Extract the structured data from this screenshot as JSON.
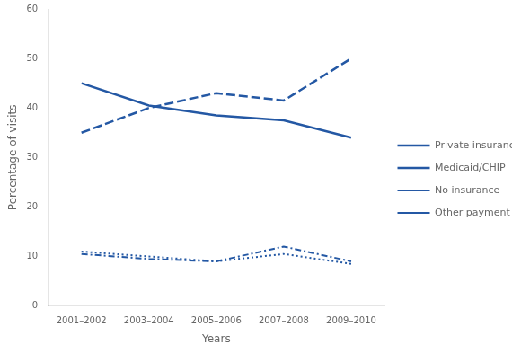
{
  "chart_data": {
    "type": "line",
    "xlabel": "Years",
    "ylabel": "Percentage of visits",
    "categories": [
      "2001–2002",
      "2003–2004",
      "2005–2006",
      "2007–2008",
      "2009–2010"
    ],
    "series": [
      {
        "name": "Private insurance",
        "color": "#2458a4",
        "line_style": "solid",
        "values": [
          45,
          40.5,
          38.5,
          37.5,
          34
        ]
      },
      {
        "name": "Medicaid/CHIP",
        "color": "#2458a4",
        "line_style": "dashed",
        "values": [
          35,
          40,
          43,
          41.5,
          50
        ]
      },
      {
        "name": "No insurance",
        "color": "#2458a4",
        "line_style": "dotted",
        "values": [
          11,
          10,
          9,
          10.5,
          8.5
        ]
      },
      {
        "name": "Other payment",
        "color": "#2458a4",
        "line_style": "dashdot",
        "values": [
          10.5,
          9.5,
          9,
          12,
          9
        ]
      }
    ],
    "ylim": [
      0,
      60
    ],
    "yticks": [
      0,
      10,
      20,
      30,
      40,
      50,
      60
    ],
    "grid": false,
    "legend": "right"
  }
}
